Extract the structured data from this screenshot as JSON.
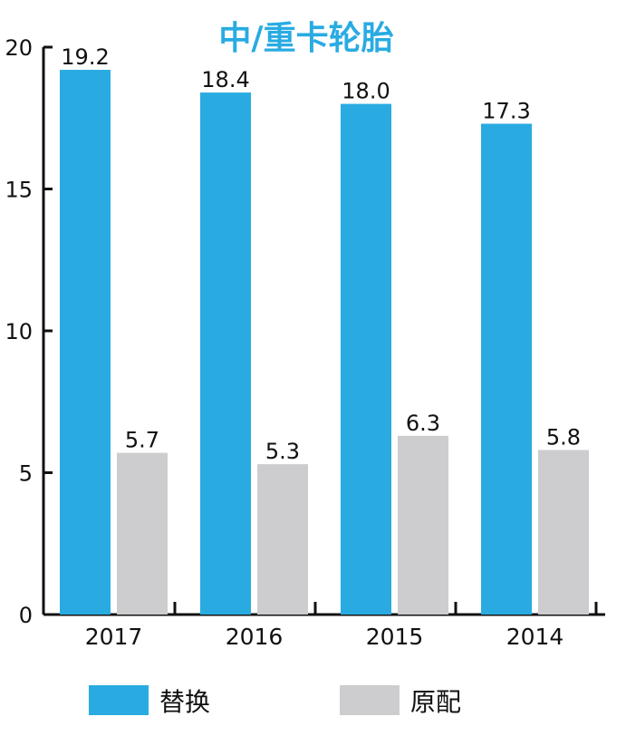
{
  "chart_data": {
    "type": "bar",
    "title": "中/重卡轮胎",
    "xlabel": "",
    "ylabel": "",
    "categories": [
      "2017",
      "2016",
      "2015",
      "2014"
    ],
    "series": [
      {
        "name": "替换",
        "color": "#29abe2",
        "values": [
          19.2,
          18.4,
          18.0,
          17.3
        ]
      },
      {
        "name": "原配",
        "color": "#cdcdcf",
        "values": [
          5.7,
          5.3,
          6.3,
          5.8
        ]
      }
    ],
    "ylim": [
      0,
      20
    ],
    "yticks": [
      0,
      5,
      10,
      15,
      20
    ],
    "grid": false,
    "legend_position": "bottom",
    "title_color": "#29abe2",
    "axis_color": "#111111"
  }
}
